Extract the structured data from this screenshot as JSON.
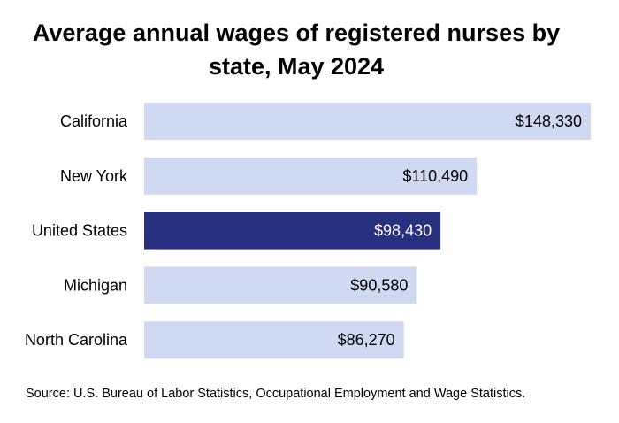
{
  "chart_data": {
    "type": "bar",
    "orientation": "horizontal",
    "title": "Average annual wages of registered nurses by state, May 2024",
    "categories": [
      "California",
      "New York",
      "United States",
      "Michigan",
      "North Carolina"
    ],
    "values": [
      148330,
      110490,
      98430,
      90580,
      86270
    ],
    "value_labels": [
      "$148,330",
      "$110,490",
      "$98,430",
      "$90,580",
      "$86,270"
    ],
    "highlight_category": "United States",
    "xlabel": "",
    "ylabel": "",
    "xlim": [
      0,
      148330
    ],
    "grid": false,
    "colors": {
      "bar": "#cfdaf2",
      "highlight": "#26307f",
      "label_dark": "#000000",
      "label_light": "#ffffff"
    }
  },
  "source": "Source: U.S. Bureau of Labor Statistics, Occupational Employment and Wage Statistics."
}
